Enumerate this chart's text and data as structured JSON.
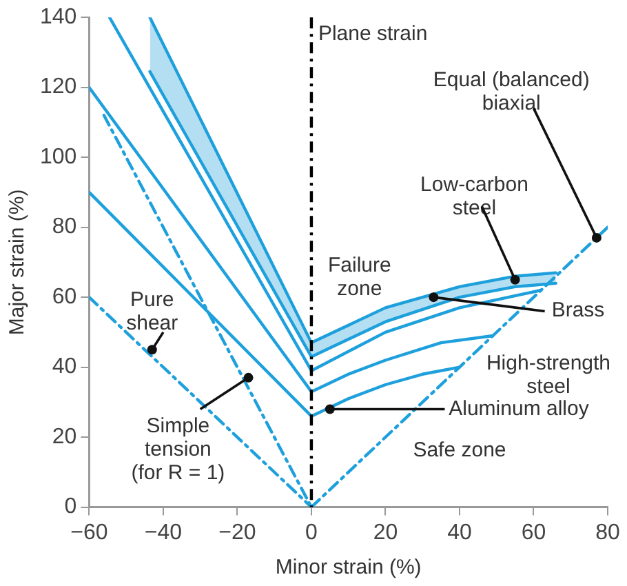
{
  "chart_data": {
    "type": "line",
    "xlabel": "Minor strain (%)",
    "ylabel": "Major strain (%)",
    "xlim": [
      -60,
      80
    ],
    "ylim": [
      0,
      140
    ],
    "xticks": [
      -60,
      -40,
      -20,
      0,
      20,
      40,
      60,
      80
    ],
    "yticks": [
      0,
      20,
      40,
      60,
      80,
      100,
      120,
      140
    ],
    "marker": "none",
    "series": [
      {
        "color": "#1ea0dc",
        "x": [
          -60,
          0,
          10,
          20,
          30,
          40
        ],
        "values": [
          90,
          26,
          31,
          35,
          38,
          40
        ]
      },
      {
        "color": "#1ea0dc",
        "x": [
          -60,
          0,
          10,
          20,
          35,
          49
        ],
        "values": [
          120,
          33,
          38,
          42,
          47,
          49
        ]
      },
      {
        "color": "#1ea0dc",
        "x": [
          -54.5,
          0,
          20,
          40,
          62
        ],
        "values": [
          140,
          39,
          50,
          57,
          62
        ]
      },
      {
        "color": "#1ea0dc",
        "x": [
          -43.6,
          0,
          20,
          40,
          55,
          66
        ],
        "values": [
          140,
          47,
          57,
          63,
          66,
          67
        ],
        "lower": [
          124.5,
          43,
          53,
          60,
          63,
          64
        ],
        "upper": [
          140,
          47,
          57,
          63,
          66,
          67
        ]
      },
      {
        "color": "#1ea0dc",
        "line_style": "dashed",
        "x": [
          -60,
          0
        ],
        "values": [
          60,
          0
        ]
      },
      {
        "color": "#1ea0dc",
        "line_style": "dashed",
        "x": [
          -56,
          0
        ],
        "values": [
          112,
          0
        ]
      },
      {
        "color": "#1ea0dc",
        "line_style": "dashed",
        "x": [
          0,
          80
        ],
        "values": [
          0,
          80
        ]
      }
    ],
    "ref_lines": [
      {
        "axis": "x",
        "value": 0,
        "label": "Plane strain",
        "color": "#000000",
        "line_style": "dashed"
      }
    ],
    "annotations": [
      {
        "text": "Pure shear",
        "x": -43,
        "y": 45
      },
      {
        "text": "Simple tension (for R = 1)",
        "x": -17,
        "y": 37
      },
      {
        "text": "Equal (balanced) biaxial",
        "x": 77,
        "y": 77
      },
      {
        "text": "Low-carbon steel",
        "x": 55,
        "y": 65
      },
      {
        "text": "Brass",
        "x": 33,
        "y": 60
      },
      "High-strength steel",
      {
        "text": "Aluminum alloy",
        "x": 5,
        "y": 28
      },
      "Failure zone",
      "Safe zone"
    ]
  }
}
